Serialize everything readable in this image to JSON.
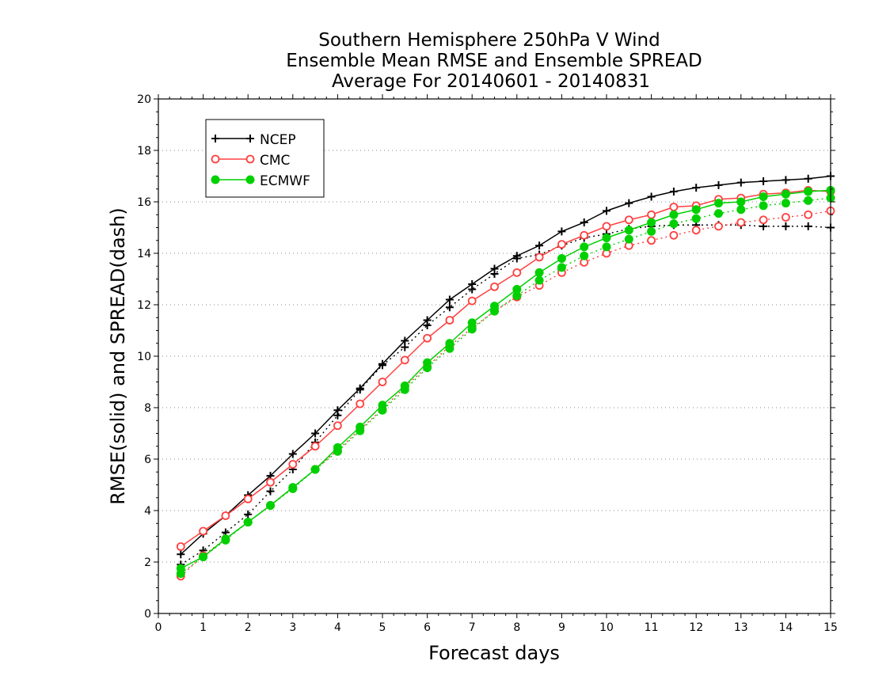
{
  "chart_data": {
    "type": "line",
    "title_lines": [
      "Southern Hemisphere 250hPa V Wind",
      "Ensemble Mean RMSE and Ensemble SPREAD",
      "Average For 20140601 - 20140831"
    ],
    "xlabel": "Forecast days",
    "ylabel": "RMSE(solid) and SPREAD(dash)",
    "xlim": [
      0,
      15
    ],
    "ylim": [
      0,
      20
    ],
    "xticks": [
      0,
      1,
      2,
      3,
      4,
      5,
      6,
      7,
      8,
      9,
      10,
      11,
      12,
      13,
      14,
      15
    ],
    "yticks": [
      0,
      2,
      4,
      6,
      8,
      10,
      12,
      14,
      16,
      18,
      20
    ],
    "grid": "horizontal dotted",
    "legend_position": "top-left",
    "x": [
      0.5,
      1,
      1.5,
      2,
      2.5,
      3,
      3.5,
      4,
      4.5,
      5,
      5.5,
      6,
      6.5,
      7,
      7.5,
      8,
      8.5,
      9,
      9.5,
      10,
      10.5,
      11,
      11.5,
      12,
      12.5,
      13,
      13.5,
      14,
      14.5,
      15
    ],
    "series": [
      {
        "name": "NCEP",
        "key": "ncep",
        "color": "#000000",
        "marker": "plus",
        "rmse": [
          2.3,
          3.1,
          3.8,
          4.6,
          5.35,
          6.2,
          7.0,
          7.9,
          8.75,
          9.7,
          10.6,
          11.4,
          12.2,
          12.8,
          13.4,
          13.9,
          14.3,
          14.85,
          15.2,
          15.65,
          15.95,
          16.2,
          16.4,
          16.55,
          16.65,
          16.75,
          16.8,
          16.85,
          16.9,
          17.0
        ],
        "spread": [
          1.9,
          2.45,
          3.15,
          3.85,
          4.75,
          5.6,
          6.65,
          7.7,
          8.7,
          9.65,
          10.35,
          11.2,
          11.9,
          12.6,
          13.2,
          13.8,
          13.95,
          14.3,
          14.6,
          14.75,
          14.95,
          15.05,
          15.1,
          15.1,
          15.1,
          15.1,
          15.05,
          15.05,
          15.05,
          15.0
        ]
      },
      {
        "name": "CMC",
        "key": "cmc",
        "color": "#ff4040",
        "marker": "open-circle",
        "rmse": [
          2.6,
          3.2,
          3.8,
          4.45,
          5.1,
          5.8,
          6.5,
          7.3,
          8.15,
          9.0,
          9.85,
          10.7,
          11.4,
          12.15,
          12.7,
          13.25,
          13.85,
          14.35,
          14.7,
          15.05,
          15.3,
          15.5,
          15.8,
          15.85,
          16.1,
          16.15,
          16.3,
          16.35,
          16.45,
          16.4
        ],
        "spread": [
          1.45,
          2.25,
          2.9,
          3.55,
          4.2,
          4.9,
          5.6,
          6.35,
          7.15,
          7.95,
          8.8,
          9.6,
          10.4,
          11.1,
          11.75,
          12.3,
          12.75,
          13.25,
          13.65,
          14.0,
          14.3,
          14.5,
          14.7,
          14.9,
          15.05,
          15.2,
          15.3,
          15.4,
          15.5,
          15.65
        ]
      },
      {
        "name": "ECMWF",
        "key": "ecmwf",
        "color": "#00d000",
        "marker": "filled-circle",
        "rmse": [
          1.75,
          2.2,
          2.9,
          3.55,
          4.2,
          4.9,
          5.6,
          6.45,
          7.25,
          8.1,
          8.85,
          9.75,
          10.5,
          11.3,
          11.95,
          12.6,
          13.25,
          13.8,
          14.25,
          14.6,
          14.9,
          15.2,
          15.5,
          15.7,
          15.95,
          16.0,
          16.2,
          16.3,
          16.4,
          16.45
        ],
        "spread": [
          1.55,
          2.2,
          2.85,
          3.55,
          4.2,
          4.85,
          5.6,
          6.3,
          7.1,
          7.9,
          8.7,
          9.55,
          10.3,
          11.05,
          11.75,
          12.35,
          12.95,
          13.45,
          13.9,
          14.25,
          14.55,
          14.85,
          15.15,
          15.35,
          15.55,
          15.7,
          15.85,
          15.95,
          16.05,
          16.15
        ]
      }
    ]
  }
}
